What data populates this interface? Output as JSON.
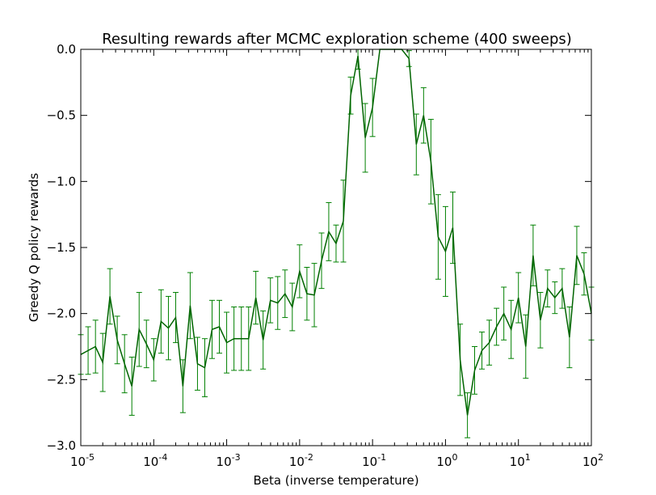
{
  "chart_data": {
    "type": "line",
    "title": "Resulting rewards after MCMC exploration scheme (400 sweeps)",
    "xlabel": "Beta (inverse temperature)",
    "ylabel": "Greedy Q policy rewards",
    "x_scale": "log",
    "xlim": [
      1e-05,
      100
    ],
    "ylim": [
      -3.0,
      0.0
    ],
    "grid": false,
    "line_color": "#006400",
    "errorbar_color": "#008000",
    "x_ticks": [
      {
        "base": "10",
        "exp": "-5"
      },
      {
        "base": "10",
        "exp": "-4"
      },
      {
        "base": "10",
        "exp": "-3"
      },
      {
        "base": "10",
        "exp": "-2"
      },
      {
        "base": "10",
        "exp": "-1"
      },
      {
        "base": "10",
        "exp": "0"
      },
      {
        "base": "10",
        "exp": "1"
      },
      {
        "base": "10",
        "exp": "2"
      }
    ],
    "y_ticks": [
      {
        "value": 0.0,
        "label": "0.0"
      },
      {
        "value": -0.5,
        "label": "−0.5"
      },
      {
        "value": -1.0,
        "label": "−1.0"
      },
      {
        "value": -1.5,
        "label": "−1.5"
      },
      {
        "value": -2.0,
        "label": "−2.0"
      },
      {
        "value": -2.5,
        "label": "−2.5"
      },
      {
        "value": -3.0,
        "label": "−3.0"
      }
    ],
    "series": [
      {
        "x": [
          1e-05,
          1.26e-05,
          1.59e-05,
          2e-05,
          2.51e-05,
          3.16e-05,
          3.98e-05,
          5.01e-05,
          6.31e-05,
          7.94e-05,
          0.0001,
          0.000126,
          0.000159,
          0.0002,
          0.000251,
          0.000316,
          0.000398,
          0.000501,
          0.000631,
          0.000794,
          0.001,
          0.00126,
          0.00159,
          0.002,
          0.00251,
          0.00316,
          0.00398,
          0.00501,
          0.00631,
          0.00794,
          0.01,
          0.0126,
          0.0159,
          0.02,
          0.0251,
          0.0316,
          0.0398,
          0.0501,
          0.0631,
          0.0794,
          0.1,
          0.126,
          0.159,
          0.2,
          0.251,
          0.316,
          0.398,
          0.501,
          0.631,
          0.794,
          1,
          1.26,
          1.59,
          2,
          2.51,
          3.16,
          3.98,
          5.01,
          6.31,
          7.94,
          10,
          12.6,
          15.9,
          20,
          25.1,
          31.6,
          39.8,
          50.1,
          63.1,
          79.4,
          100
        ],
        "y": [
          -2.31,
          -2.28,
          -2.25,
          -2.37,
          -1.87,
          -2.2,
          -2.38,
          -2.55,
          -2.12,
          -2.23,
          -2.35,
          -2.06,
          -2.11,
          -2.03,
          -2.55,
          -1.94,
          -2.38,
          -2.41,
          -2.12,
          -2.1,
          -2.22,
          -2.19,
          -2.19,
          -2.19,
          -1.88,
          -2.2,
          -1.9,
          -1.92,
          -1.85,
          -1.95,
          -1.68,
          -1.85,
          -1.86,
          -1.6,
          -1.38,
          -1.47,
          -1.3,
          -0.35,
          -0.05,
          -0.67,
          -0.44,
          0.0,
          0.0,
          0.0,
          0.0,
          -0.07,
          -0.72,
          -0.5,
          -0.85,
          -1.42,
          -1.53,
          -1.35,
          -2.35,
          -2.77,
          -2.43,
          -2.28,
          -2.22,
          -2.1,
          -2.0,
          -2.12,
          -1.88,
          -2.25,
          -1.56,
          -2.05,
          -1.81,
          -1.88,
          -1.81,
          -2.18,
          -1.56,
          -1.7,
          -2.0
        ],
        "error": [
          0.15,
          0.18,
          0.2,
          0.22,
          0.21,
          0.18,
          0.22,
          0.22,
          0.28,
          0.18,
          0.16,
          0.24,
          0.24,
          0.19,
          0.2,
          0.25,
          0.2,
          0.22,
          0.22,
          0.2,
          0.23,
          0.24,
          0.24,
          0.24,
          0.2,
          0.22,
          0.17,
          0.2,
          0.18,
          0.18,
          0.2,
          0.2,
          0.24,
          0.21,
          0.22,
          0.14,
          0.31,
          0.14,
          0.1,
          0.26,
          0.22,
          0.0,
          0.0,
          0.0,
          0.0,
          0.06,
          0.23,
          0.21,
          0.32,
          0.32,
          0.34,
          0.27,
          0.27,
          0.17,
          0.18,
          0.14,
          0.17,
          0.14,
          0.2,
          0.22,
          0.19,
          0.24,
          0.23,
          0.21,
          0.14,
          0.12,
          0.15,
          0.23,
          0.22,
          0.16,
          0.2
        ]
      }
    ]
  }
}
